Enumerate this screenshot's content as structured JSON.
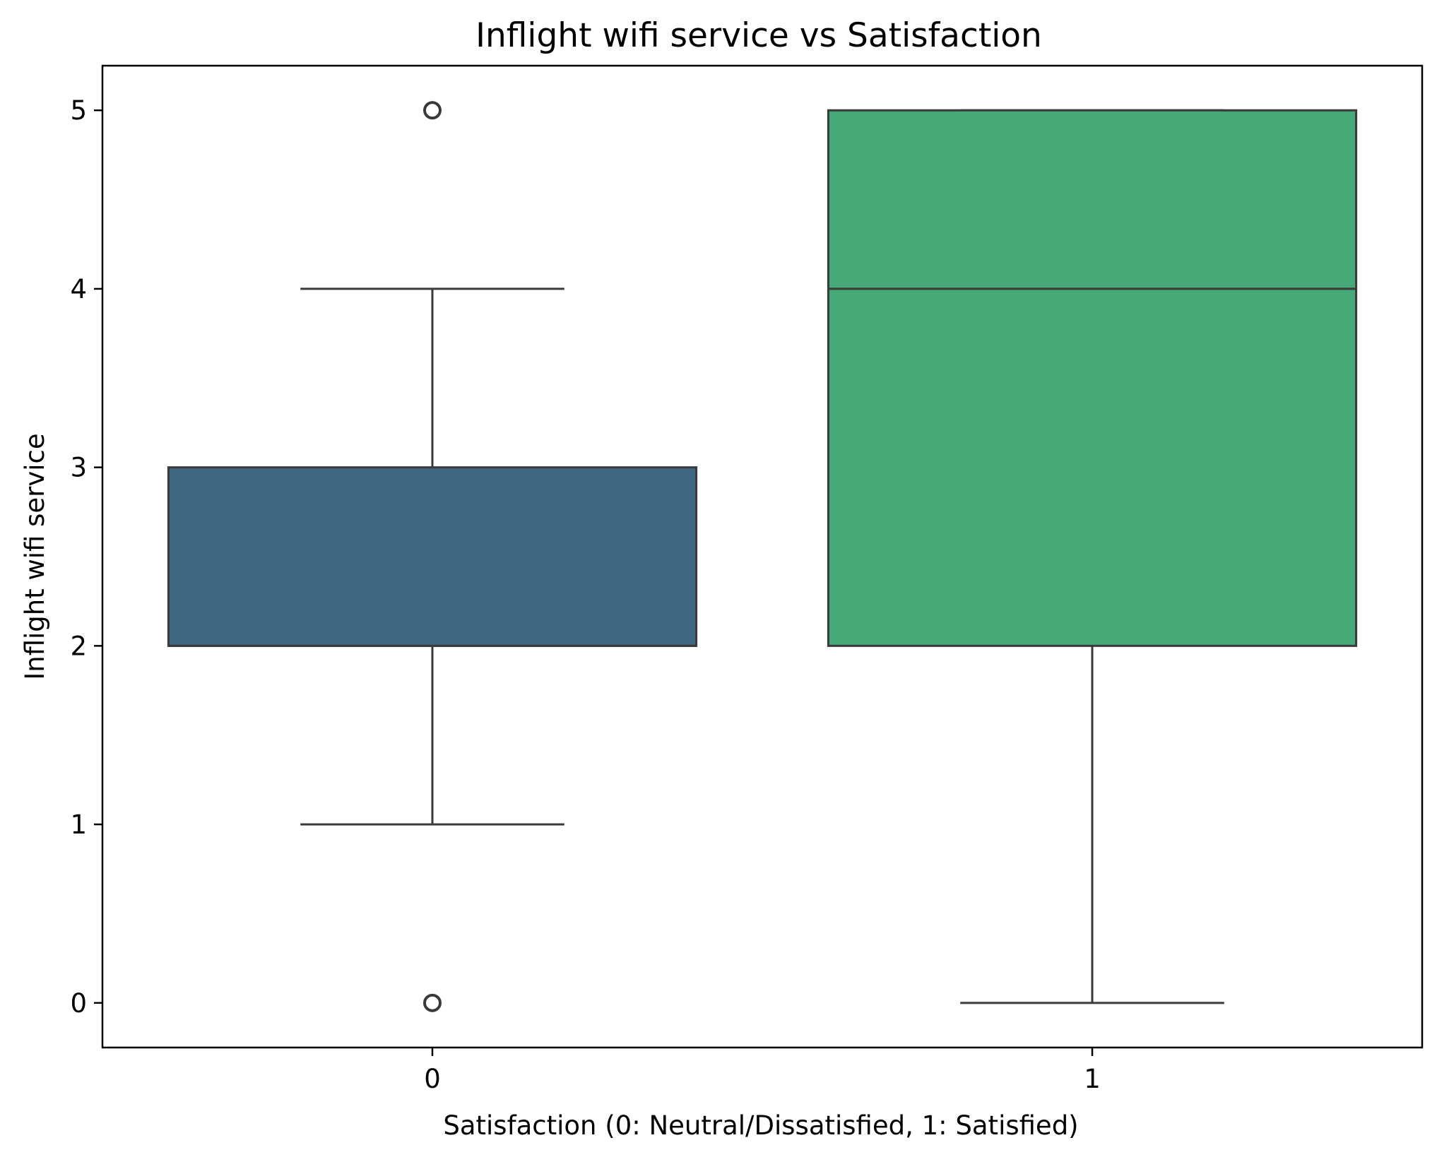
{
  "chart_data": {
    "type": "box",
    "title": "Inflight wifi service vs Satisfaction",
    "xlabel": "Satisfaction (0: Neutral/Dissatisfied, 1: Satisfied)",
    "ylabel": "Inflight wifi service",
    "categories": [
      "0",
      "1"
    ],
    "y_ticks": [
      "0",
      "1",
      "2",
      "3",
      "4",
      "5"
    ],
    "ylim": [
      -0.25,
      5.25
    ],
    "grid": false,
    "boxes": [
      {
        "category": "0",
        "whisker_low": 1,
        "q1": 2,
        "median": 2,
        "q3": 3,
        "whisker_high": 4,
        "outliers": [
          0,
          5
        ],
        "color": "#3f6682"
      },
      {
        "category": "1",
        "whisker_low": 0,
        "q1": 2,
        "median": 4,
        "q3": 5,
        "whisker_high": 5,
        "outliers": [],
        "color": "#47a878"
      }
    ],
    "line_color": "#3a3a3a"
  }
}
